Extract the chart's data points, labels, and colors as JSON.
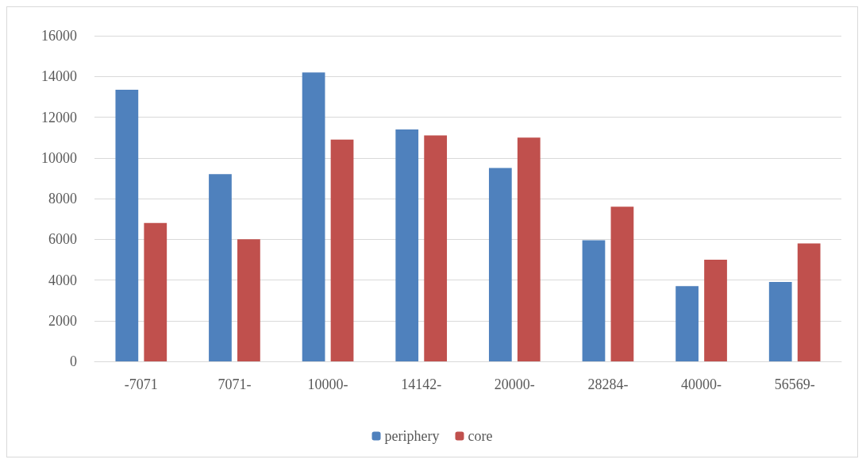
{
  "chart_data": {
    "type": "bar",
    "categories": [
      "-7071",
      "7071-",
      "10000-",
      "14142-",
      "20000-",
      "28284-",
      "40000-",
      "56569-"
    ],
    "series": [
      {
        "name": "periphery",
        "color": "#4f81bd",
        "values": [
          13350,
          9200,
          14200,
          11400,
          9500,
          5950,
          3700,
          3900
        ]
      },
      {
        "name": "core",
        "color": "#c0504d",
        "values": [
          6800,
          6000,
          10900,
          11100,
          11000,
          7600,
          5000,
          5800
        ]
      }
    ],
    "ylim": [
      0,
      16000
    ],
    "yticks": [
      0,
      2000,
      4000,
      6000,
      8000,
      10000,
      12000,
      14000,
      16000
    ],
    "grid": "y",
    "legend": "bottom"
  }
}
